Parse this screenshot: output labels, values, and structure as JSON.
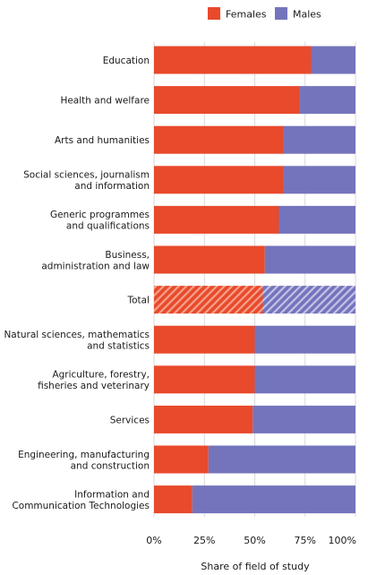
{
  "chart_data": {
    "type": "bar",
    "orientation": "horizontal",
    "stacked": true,
    "percent": true,
    "categories": [
      "Education",
      "Health and welfare",
      "Arts and humanities",
      "Social sciences, journalism and information",
      "Generic programmes and qualifications",
      "Business, administration and law",
      "Total",
      "Natural sciences, mathematics and statistics",
      "Agriculture, forestry, fisheries and veterinary",
      "Services",
      "Engineering, manufacturing and construction",
      "Information and Communication Technologies"
    ],
    "category_lines": [
      [
        "Education"
      ],
      [
        "Health and welfare"
      ],
      [
        "Arts and humanities"
      ],
      [
        "Social sciences, journalism",
        "and information"
      ],
      [
        "Generic programmes",
        "and qualifications"
      ],
      [
        "Business,",
        "administration and law"
      ],
      [
        "Total"
      ],
      [
        "Natural sciences, mathematics",
        "and statistics"
      ],
      [
        "Agriculture, forestry,",
        "fisheries and veterinary"
      ],
      [
        "Services"
      ],
      [
        "Engineering, manufacturing",
        "and construction"
      ],
      [
        "Information and",
        "Communication Technologies"
      ]
    ],
    "series": [
      {
        "name": "Females",
        "color": "#e84a2b",
        "values": [
          78,
          72,
          64,
          64,
          62,
          55,
          54,
          50,
          50,
          49,
          27,
          19
        ]
      },
      {
        "name": "Males",
        "color": "#7474bd",
        "values": [
          22,
          28,
          36,
          36,
          38,
          45,
          46,
          50,
          50,
          51,
          73,
          81
        ]
      }
    ],
    "highlight_category": "Total",
    "xlim": [
      0,
      100
    ],
    "xticks": [
      0,
      25,
      50,
      75,
      100
    ],
    "xtick_labels": [
      "0%",
      "25%",
      "50%",
      "75%",
      "100%"
    ],
    "xlabel": "Share of field of study",
    "ylabel": "",
    "title": "",
    "legend_position": "top-right",
    "grid": true
  }
}
